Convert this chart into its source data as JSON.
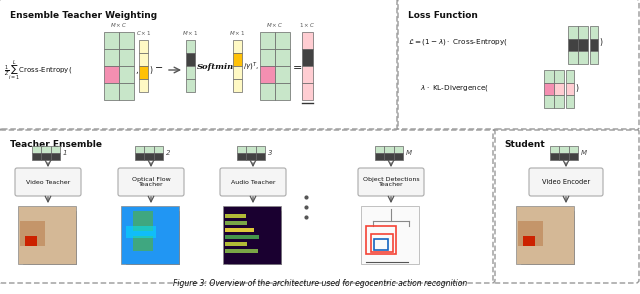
{
  "bg_color": "#ffffff",
  "section_top_title": "Ensemble Teacher Weighting",
  "section_top_right_title": "Loss Function",
  "section_bottom_title": "Teacher Ensemble",
  "section_bottom_right_title": "Student",
  "teachers": [
    "Video Teacher",
    "Optical Flow\nTeacher",
    "Audio Teacher",
    "Object Detections\nTeacher"
  ],
  "student": "Video Encoder",
  "clr_green_light": "#c8e6c9",
  "clr_green_mid": "#81c784",
  "clr_pink_light": "#ffcdd2",
  "clr_pink": "#ef9a9a",
  "clr_pink_dark": "#f48fb1",
  "clr_yellow_light": "#fff9c4",
  "clr_yellow": "#ffe082",
  "clr_yellow_dark": "#ffc107",
  "clr_red_light": "#ffcdd2",
  "clr_dark": "#424242",
  "clr_black": "#212121",
  "arrow_color": "#555555",
  "dashed_color": "#999999",
  "box_bg": "#f5f5f5",
  "box_border": "#aaaaaa",
  "caption": "Figure 3: Overview of the architecture used for egocentric action recognition"
}
